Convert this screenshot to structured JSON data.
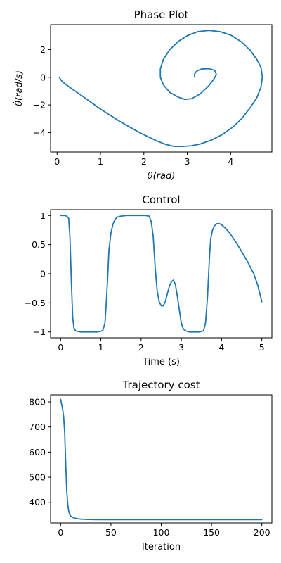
{
  "chart_data": [
    {
      "type": "line",
      "title": "Phase Plot",
      "xlabel": "θ(rad)",
      "ylabel": "θ̇(rad/s)",
      "xlim": [
        -0.15,
        4.95
      ],
      "ylim": [
        -5.4,
        3.8
      ],
      "xticks": [
        0,
        1,
        2,
        3,
        4
      ],
      "yticks": [
        -4,
        -2,
        0,
        2
      ],
      "color": "#1f77b4",
      "series": [
        {
          "x": [
            0.05,
            0.08,
            0.13,
            0.3,
            0.6,
            1.0,
            1.45,
            1.9,
            2.3,
            2.5,
            2.7,
            2.9,
            3.1,
            3.3,
            3.55,
            3.8,
            4.05,
            4.25,
            4.45,
            4.6,
            4.7,
            4.73,
            4.7,
            4.6,
            4.45,
            4.25,
            4.0,
            3.75,
            3.5,
            3.25,
            3.0,
            2.8,
            2.6,
            2.45,
            2.38,
            2.38,
            2.45,
            2.6,
            2.8,
            2.95,
            3.1,
            3.3,
            3.5,
            3.62,
            3.67,
            3.63,
            3.5,
            3.33,
            3.22,
            3.17,
            3.17
          ],
          "y": [
            0.0,
            -0.15,
            -0.35,
            -0.75,
            -1.4,
            -2.3,
            -3.2,
            -4.0,
            -4.6,
            -4.85,
            -5.0,
            -5.0,
            -4.95,
            -4.82,
            -4.55,
            -4.15,
            -3.6,
            -3.0,
            -2.2,
            -1.5,
            -0.7,
            0.0,
            0.7,
            1.3,
            1.95,
            2.55,
            3.05,
            3.3,
            3.38,
            3.3,
            3.0,
            2.6,
            2.0,
            1.3,
            0.6,
            0.0,
            -0.55,
            -1.1,
            -1.45,
            -1.6,
            -1.55,
            -1.2,
            -0.6,
            -0.1,
            0.2,
            0.5,
            0.62,
            0.6,
            0.45,
            0.25,
            0.0
          ]
        }
      ]
    },
    {
      "type": "line",
      "title": "Control",
      "xlabel": "Time (s)",
      "ylabel": "",
      "xlim": [
        -0.25,
        5.25
      ],
      "ylim": [
        -1.1,
        1.1
      ],
      "xticks": [
        0,
        1,
        2,
        3,
        4,
        5
      ],
      "yticks": [
        -1.0,
        -0.5,
        0.0,
        0.5,
        1.0
      ],
      "color": "#1f77b4",
      "series": [
        {
          "x": [
            0.0,
            0.1,
            0.15,
            0.2,
            0.23,
            0.27,
            0.3,
            0.33,
            0.37,
            0.42,
            0.5,
            0.7,
            0.9,
            1.0,
            1.05,
            1.1,
            1.13,
            1.17,
            1.2,
            1.25,
            1.3,
            1.35,
            1.4,
            1.5,
            1.65,
            1.8,
            2.0,
            2.1,
            2.2,
            2.25,
            2.3,
            2.35,
            2.4,
            2.45,
            2.5,
            2.55,
            2.6,
            2.65,
            2.7,
            2.75,
            2.8,
            2.85,
            2.9,
            2.95,
            3.0,
            3.05,
            3.1,
            3.15,
            3.2,
            3.25,
            3.3,
            3.35,
            3.45,
            3.55,
            3.6,
            3.65,
            3.7,
            3.73,
            3.77,
            3.82,
            3.88,
            3.95,
            4.0,
            4.1,
            4.2,
            4.35,
            4.5,
            4.65,
            4.8,
            4.9,
            5.0
          ],
          "y": [
            1.0,
            1.0,
            0.99,
            0.95,
            0.65,
            -0.2,
            -0.75,
            -0.93,
            -0.98,
            -0.99,
            -1.0,
            -1.0,
            -1.0,
            -0.99,
            -0.97,
            -0.85,
            -0.55,
            -0.05,
            0.4,
            0.7,
            0.85,
            0.93,
            0.97,
            0.99,
            1.0,
            1.0,
            1.0,
            1.0,
            0.99,
            0.9,
            0.65,
            0.1,
            -0.3,
            -0.48,
            -0.55,
            -0.55,
            -0.48,
            -0.35,
            -0.22,
            -0.14,
            -0.11,
            -0.18,
            -0.38,
            -0.62,
            -0.85,
            -0.95,
            -0.98,
            -0.99,
            -1.0,
            -1.0,
            -1.0,
            -1.0,
            -1.0,
            -0.98,
            -0.85,
            -0.4,
            0.3,
            0.6,
            0.74,
            0.82,
            0.86,
            0.86,
            0.84,
            0.78,
            0.7,
            0.55,
            0.38,
            0.2,
            0.0,
            -0.2,
            -0.48
          ]
        }
      ]
    },
    {
      "type": "line",
      "title": "Trajectory cost",
      "xlabel": "Iteration",
      "ylabel": "",
      "xlim": [
        -10,
        210
      ],
      "ylim": [
        318,
        828
      ],
      "xticks": [
        0,
        50,
        100,
        150,
        200
      ],
      "yticks": [
        400,
        500,
        600,
        700,
        800
      ],
      "color": "#1f77b4",
      "series": [
        {
          "x": [
            0,
            1,
            2,
            3,
            4,
            5,
            6,
            7,
            8,
            9,
            10,
            12,
            14,
            16,
            18,
            20,
            25,
            30,
            40,
            50,
            60,
            80,
            100,
            120,
            150,
            200
          ],
          "y": [
            810,
            790,
            770,
            740,
            680,
            560,
            450,
            395,
            365,
            352,
            345,
            340,
            337,
            335,
            334,
            333,
            332,
            331.5,
            331,
            331,
            331,
            331,
            331,
            331,
            331,
            331
          ]
        }
      ]
    }
  ]
}
